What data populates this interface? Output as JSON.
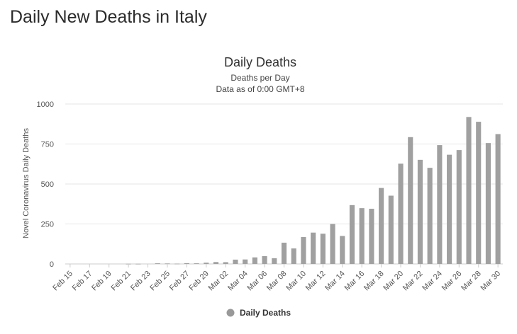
{
  "page": {
    "title": "Daily New Deaths in Italy"
  },
  "chart_data": {
    "type": "bar",
    "title": "Daily Deaths",
    "subtitle_lines": [
      "Deaths per Day",
      "Data as of 0:00 GMT+8"
    ],
    "ylabel": "Novel Coronavirus Daily Deaths",
    "xlabel": "",
    "ylim": [
      0,
      1000
    ],
    "yticks": [
      0,
      250,
      500,
      750,
      1000
    ],
    "grid": true,
    "legend_position": "bottom-center",
    "bar_color": "#a0a0a0",
    "legend_marker_color": "#999999",
    "categories": [
      "Feb 15",
      "Feb 16",
      "Feb 17",
      "Feb 18",
      "Feb 19",
      "Feb 20",
      "Feb 21",
      "Feb 22",
      "Feb 23",
      "Feb 24",
      "Feb 25",
      "Feb 26",
      "Feb 27",
      "Feb 28",
      "Feb 29",
      "Mar 01",
      "Mar 02",
      "Mar 03",
      "Mar 04",
      "Mar 05",
      "Mar 06",
      "Mar 07",
      "Mar 08",
      "Mar 09",
      "Mar 10",
      "Mar 11",
      "Mar 12",
      "Mar 13",
      "Mar 14",
      "Mar 15",
      "Mar 16",
      "Mar 17",
      "Mar 18",
      "Mar 19",
      "Mar 20",
      "Mar 21",
      "Mar 22",
      "Mar 23",
      "Mar 24",
      "Mar 25",
      "Mar 26",
      "Mar 27",
      "Mar 28",
      "Mar 29",
      "Mar 30"
    ],
    "tick_labels": [
      "Feb 15",
      "Feb 17",
      "Feb 19",
      "Feb 21",
      "Feb 23",
      "Feb 25",
      "Feb 27",
      "Feb 29",
      "Mar 02",
      "Mar 04",
      "Mar 06",
      "Mar 08",
      "Mar 10",
      "Mar 12",
      "Mar 14",
      "Mar 16",
      "Mar 18",
      "Mar 20",
      "Mar 22",
      "Mar 24",
      "Mar 26",
      "Mar 28",
      "Mar 30"
    ],
    "series": [
      {
        "name": "Daily Deaths",
        "values": [
          0,
          0,
          0,
          0,
          0,
          0,
          1,
          1,
          0,
          4,
          3,
          2,
          5,
          4,
          8,
          12,
          11,
          27,
          28,
          41,
          49,
          36,
          133,
          97,
          168,
          196,
          189,
          250,
          175,
          368,
          349,
          345,
          475,
          427,
          627,
          793,
          651,
          601,
          743,
          683,
          712,
          919,
          889,
          756,
          812
        ]
      }
    ]
  }
}
